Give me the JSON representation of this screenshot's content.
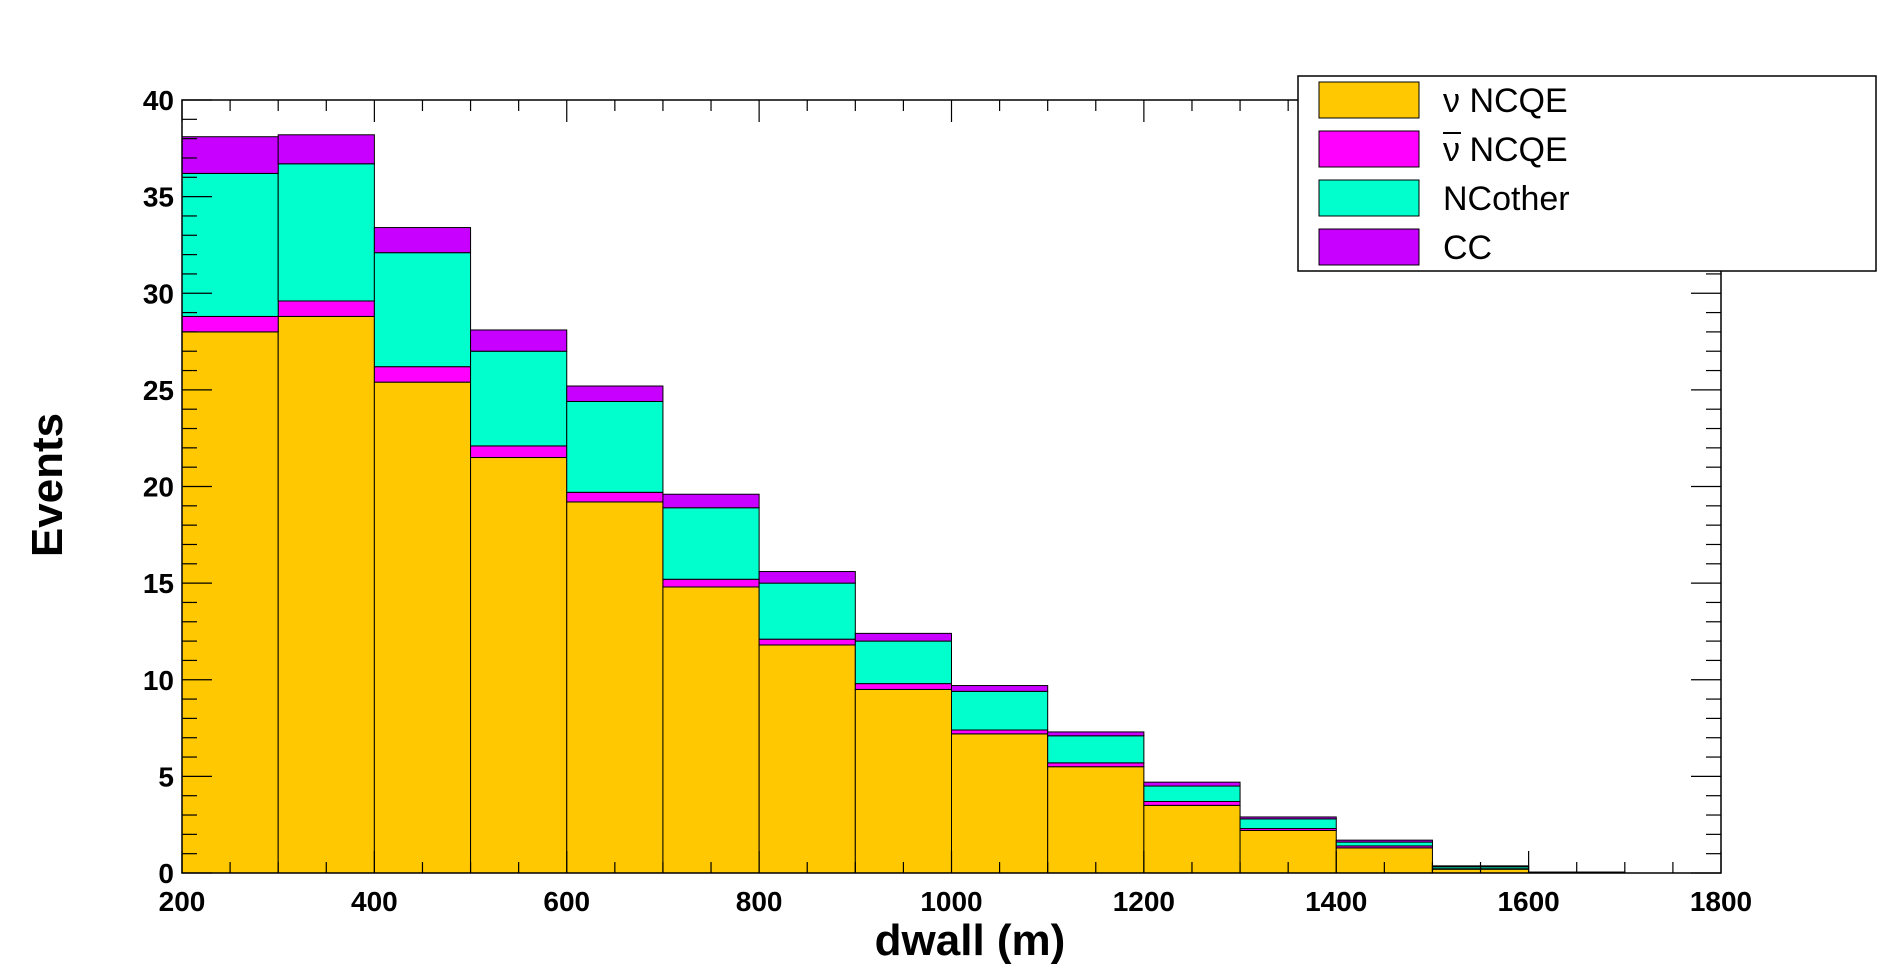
{
  "chart_data": {
    "type": "bar",
    "stacked": true,
    "histogram": true,
    "xlabel": "dwall (m)",
    "ylabel": "Events",
    "xlim": [
      200,
      1800
    ],
    "ylim": [
      0,
      40
    ],
    "x_ticks": [
      200,
      400,
      600,
      800,
      1000,
      1200,
      1400,
      1600,
      1800
    ],
    "y_ticks": [
      0,
      5,
      10,
      15,
      20,
      25,
      30,
      35,
      40
    ],
    "bin_edges": [
      200,
      300,
      400,
      500,
      600,
      700,
      800,
      900,
      1000,
      1100,
      1200,
      1300,
      1400,
      1500,
      1600,
      1700
    ],
    "series": [
      {
        "name": "ν NCQE",
        "color": "#ffc800",
        "values": [
          28.0,
          28.8,
          25.4,
          21.5,
          19.2,
          14.8,
          11.8,
          9.5,
          7.2,
          5.5,
          3.5,
          2.2,
          1.3,
          0.2,
          0.05
        ]
      },
      {
        "name": "ν NCQE",
        "overline_glyph": true,
        "color": "#ff00ff",
        "values": [
          0.8,
          0.8,
          0.8,
          0.6,
          0.5,
          0.4,
          0.3,
          0.3,
          0.2,
          0.2,
          0.2,
          0.1,
          0.1,
          0.02,
          0.0
        ]
      },
      {
        "name": "NCother",
        "color": "#00ffcc",
        "values": [
          7.4,
          7.1,
          5.9,
          4.9,
          4.7,
          3.7,
          2.9,
          2.2,
          2.0,
          1.4,
          0.8,
          0.5,
          0.2,
          0.1,
          0.0
        ]
      },
      {
        "name": "CC",
        "color": "#c800ff",
        "values": [
          1.9,
          1.5,
          1.3,
          1.1,
          0.8,
          0.7,
          0.6,
          0.4,
          0.3,
          0.2,
          0.2,
          0.1,
          0.1,
          0.05,
          0.0
        ]
      }
    ],
    "legend_position": "top-right",
    "grid": false
  }
}
